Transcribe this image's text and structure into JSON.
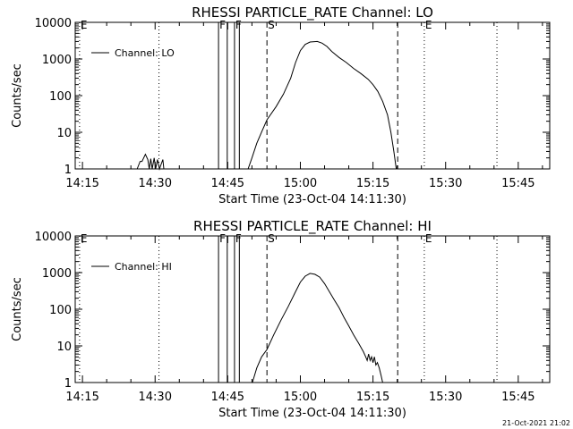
{
  "chart_data": [
    {
      "type": "line",
      "title": "RHESSI PARTICLE_RATE Channel: LO",
      "xlabel": "Start Time (23-Oct-04 14:11:30)",
      "ylabel": "Counts/sec",
      "y_scale": "log",
      "ylim": [
        1,
        10000
      ],
      "x_range_min": [
        2,
        100
      ],
      "x_ticks": [
        {
          "t": 3.5,
          "label": "14:15"
        },
        {
          "t": 18.5,
          "label": "14:30"
        },
        {
          "t": 33.5,
          "label": "14:45"
        },
        {
          "t": 48.5,
          "label": "15:00"
        },
        {
          "t": 63.5,
          "label": "15:15"
        },
        {
          "t": 78.5,
          "label": "15:30"
        },
        {
          "t": 93.5,
          "label": "15:45"
        }
      ],
      "y_ticks": [
        {
          "v": 1,
          "label": "1"
        },
        {
          "v": 10,
          "label": "10"
        },
        {
          "v": 100,
          "label": "100"
        },
        {
          "v": 1000,
          "label": "1000"
        },
        {
          "v": 10000,
          "label": "10000"
        }
      ],
      "legend": {
        "label": "Channel: LO",
        "position": "top-left"
      },
      "markers": [
        {
          "t": 2.9,
          "label": "E",
          "style": "dotted"
        },
        {
          "t": 19.3,
          "label": "",
          "style": "dotted"
        },
        {
          "t": 31.6,
          "label": "F",
          "style": "solid"
        },
        {
          "t": 33.4,
          "label": "",
          "style": "solid"
        },
        {
          "t": 34.9,
          "label": "F",
          "style": "solid"
        },
        {
          "t": 35.9,
          "label": "",
          "style": "solid"
        },
        {
          "t": 41.6,
          "label": "S",
          "style": "dashed"
        },
        {
          "t": 68.6,
          "label": "",
          "style": "dashed"
        },
        {
          "t": 74.1,
          "label": "E",
          "style": "dotted"
        },
        {
          "t": 89.1,
          "label": "",
          "style": "dotted"
        }
      ],
      "series": [
        {
          "name": "Channel: LO",
          "points": [
            [
              14.8,
              1
            ],
            [
              15.4,
              1.6
            ],
            [
              15.8,
              1.6
            ],
            [
              16.5,
              2.5
            ],
            [
              17.0,
              1.8
            ],
            [
              17.3,
              1
            ],
            [
              17.6,
              1.9
            ],
            [
              17.9,
              1
            ],
            [
              18.3,
              2
            ],
            [
              18.6,
              1
            ],
            [
              19.0,
              1.8
            ],
            [
              19.4,
              1
            ],
            [
              20.1,
              1.8
            ],
            [
              20.3,
              1
            ],
            [
              37.7,
              1
            ],
            [
              38.5,
              2
            ],
            [
              39.5,
              5
            ],
            [
              40.6,
              11
            ],
            [
              41.6,
              22
            ],
            [
              43.5,
              50
            ],
            [
              45.0,
              110
            ],
            [
              46.5,
              300
            ],
            [
              47.5,
              800
            ],
            [
              48.5,
              1700
            ],
            [
              49.5,
              2500
            ],
            [
              50.5,
              2900
            ],
            [
              52.0,
              3000
            ],
            [
              53.0,
              2700
            ],
            [
              54.0,
              2200
            ],
            [
              55.0,
              1600
            ],
            [
              56.5,
              1100
            ],
            [
              58.0,
              800
            ],
            [
              59.5,
              550
            ],
            [
              61.0,
              400
            ],
            [
              62.5,
              280
            ],
            [
              63.5,
              200
            ],
            [
              64.5,
              130
            ],
            [
              65.5,
              70
            ],
            [
              66.5,
              30
            ],
            [
              67.2,
              10
            ],
            [
              67.8,
              3
            ],
            [
              68.3,
              1
            ]
          ]
        }
      ]
    },
    {
      "type": "line",
      "title": "RHESSI PARTICLE_RATE Channel: HI",
      "xlabel": "Start Time (23-Oct-04 14:11:30)",
      "ylabel": "Counts/sec",
      "y_scale": "log",
      "ylim": [
        1,
        10000
      ],
      "x_range_min": [
        2,
        100
      ],
      "x_ticks": [
        {
          "t": 3.5,
          "label": "14:15"
        },
        {
          "t": 18.5,
          "label": "14:30"
        },
        {
          "t": 33.5,
          "label": "14:45"
        },
        {
          "t": 48.5,
          "label": "15:00"
        },
        {
          "t": 63.5,
          "label": "15:15"
        },
        {
          "t": 78.5,
          "label": "15:30"
        },
        {
          "t": 93.5,
          "label": "15:45"
        }
      ],
      "y_ticks": [
        {
          "v": 1,
          "label": "1"
        },
        {
          "v": 10,
          "label": "10"
        },
        {
          "v": 100,
          "label": "100"
        },
        {
          "v": 1000,
          "label": "1000"
        },
        {
          "v": 10000,
          "label": "10000"
        }
      ],
      "legend": {
        "label": "Channel: HI",
        "position": "top-left"
      },
      "markers": [
        {
          "t": 2.9,
          "label": "E",
          "style": "dotted"
        },
        {
          "t": 19.3,
          "label": "",
          "style": "dotted"
        },
        {
          "t": 31.6,
          "label": "F",
          "style": "solid"
        },
        {
          "t": 33.4,
          "label": "",
          "style": "solid"
        },
        {
          "t": 34.9,
          "label": "F",
          "style": "solid"
        },
        {
          "t": 35.9,
          "label": "",
          "style": "solid"
        },
        {
          "t": 41.6,
          "label": "S",
          "style": "dashed"
        },
        {
          "t": 68.6,
          "label": "",
          "style": "dashed"
        },
        {
          "t": 74.1,
          "label": "E",
          "style": "dotted"
        },
        {
          "t": 89.1,
          "label": "",
          "style": "dotted"
        }
      ],
      "series": [
        {
          "name": "Channel: HI",
          "points": [
            [
              38.6,
              1
            ],
            [
              39.5,
              2.5
            ],
            [
              40.5,
              5
            ],
            [
              41.6,
              8
            ],
            [
              43.0,
              20
            ],
            [
              44.5,
              50
            ],
            [
              46.0,
              120
            ],
            [
              47.5,
              300
            ],
            [
              48.5,
              550
            ],
            [
              49.5,
              800
            ],
            [
              50.5,
              950
            ],
            [
              51.5,
              900
            ],
            [
              52.5,
              750
            ],
            [
              53.5,
              500
            ],
            [
              54.5,
              300
            ],
            [
              55.5,
              180
            ],
            [
              56.5,
              110
            ],
            [
              57.5,
              60
            ],
            [
              58.5,
              35
            ],
            [
              59.5,
              20
            ],
            [
              60.5,
              12
            ],
            [
              61.5,
              7
            ],
            [
              62.0,
              5
            ],
            [
              62.3,
              4
            ],
            [
              62.6,
              6
            ],
            [
              62.9,
              4
            ],
            [
              63.2,
              5
            ],
            [
              63.5,
              3.5
            ],
            [
              63.8,
              5
            ],
            [
              64.1,
              3
            ],
            [
              64.4,
              3.5
            ],
            [
              64.8,
              2.5
            ],
            [
              65.2,
              1.5
            ],
            [
              65.5,
              1
            ]
          ]
        }
      ]
    }
  ],
  "footer": {
    "timestamp": "21-Oct-2021 21:02"
  }
}
